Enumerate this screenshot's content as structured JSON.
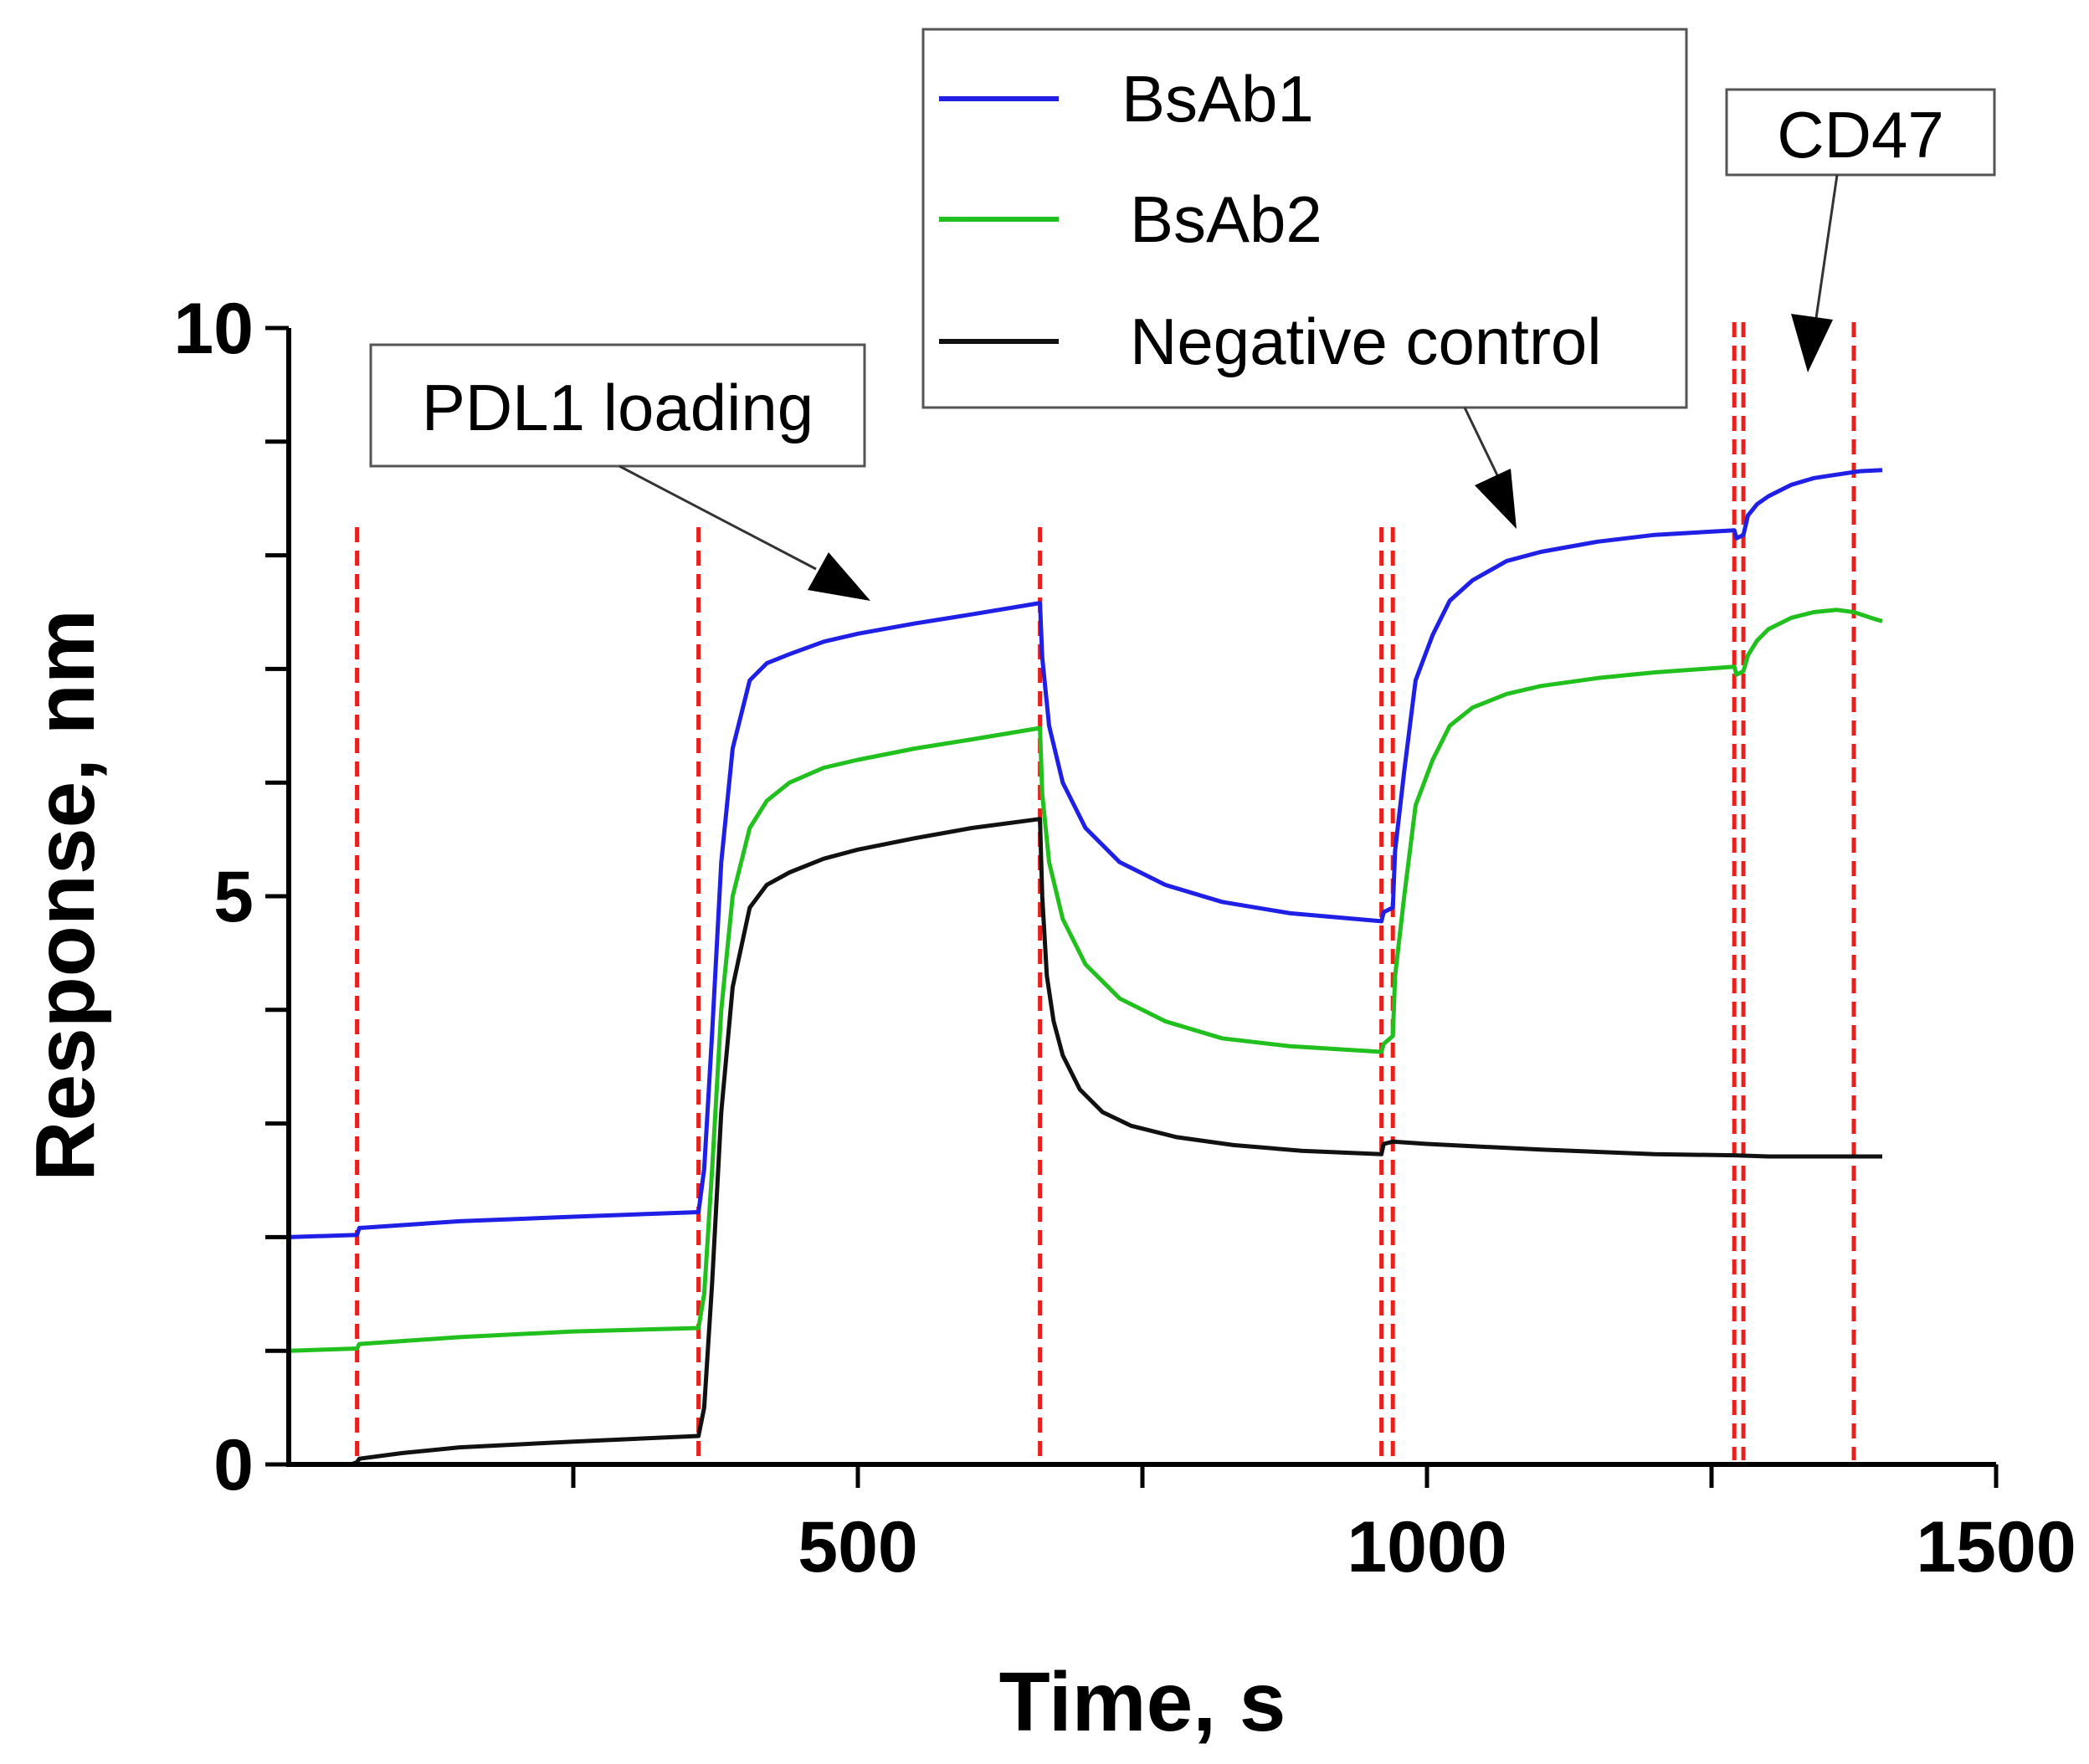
{
  "chart_data": {
    "type": "line",
    "xlabel": "Time, s",
    "ylabel": "Response, nm",
    "xlim": [
      0,
      1500
    ],
    "ylim": [
      0,
      10
    ],
    "x_ticks": [
      500,
      1000,
      1500
    ],
    "x_minor_ticks": [
      250,
      750,
      1250
    ],
    "y_ticks": [
      0,
      5,
      10
    ],
    "step_boundaries": [
      60,
      360,
      660,
      960,
      970,
      1270,
      1278,
      1375
    ],
    "series": [
      {
        "name": "BsAb1",
        "color": "#1f1fe6",
        "x": [
          0,
          60,
          62,
          150,
          250,
          360,
          365,
          372,
          380,
          390,
          405,
          420,
          440,
          470,
          500,
          550,
          600,
          660,
          662,
          668,
          680,
          700,
          730,
          770,
          820,
          880,
          960,
          962,
          970,
          972,
          980,
          990,
          1005,
          1020,
          1040,
          1070,
          1100,
          1150,
          1200,
          1270,
          1272,
          1278,
          1282,
          1290,
          1300,
          1320,
          1340,
          1360,
          1380,
          1400
        ],
        "y": [
          2.0,
          2.02,
          2.08,
          2.14,
          2.18,
          2.22,
          2.6,
          3.8,
          5.3,
          6.3,
          6.9,
          7.05,
          7.13,
          7.24,
          7.31,
          7.4,
          7.48,
          7.58,
          7.1,
          6.5,
          6.0,
          5.6,
          5.3,
          5.1,
          4.95,
          4.85,
          4.78,
          4.86,
          4.9,
          5.4,
          6.1,
          6.9,
          7.3,
          7.6,
          7.78,
          7.95,
          8.03,
          8.12,
          8.18,
          8.22,
          8.15,
          8.18,
          8.35,
          8.45,
          8.52,
          8.62,
          8.68,
          8.71,
          8.74,
          8.75
        ]
      },
      {
        "name": "BsAb2",
        "color": "#22c01e",
        "x": [
          0,
          60,
          62,
          150,
          250,
          360,
          365,
          372,
          380,
          390,
          405,
          420,
          440,
          470,
          500,
          550,
          600,
          660,
          662,
          668,
          680,
          700,
          730,
          770,
          820,
          880,
          960,
          962,
          970,
          972,
          980,
          990,
          1005,
          1020,
          1040,
          1070,
          1100,
          1150,
          1200,
          1270,
          1272,
          1278,
          1282,
          1290,
          1300,
          1320,
          1340,
          1360,
          1375,
          1390,
          1400
        ],
        "y": [
          1.0,
          1.02,
          1.06,
          1.12,
          1.17,
          1.2,
          1.5,
          2.6,
          4.0,
          5.0,
          5.6,
          5.84,
          6.0,
          6.13,
          6.2,
          6.3,
          6.38,
          6.48,
          5.9,
          5.3,
          4.8,
          4.4,
          4.1,
          3.9,
          3.75,
          3.68,
          3.63,
          3.7,
          3.77,
          4.3,
          5.0,
          5.8,
          6.2,
          6.5,
          6.66,
          6.78,
          6.85,
          6.92,
          6.97,
          7.02,
          6.95,
          6.98,
          7.12,
          7.25,
          7.35,
          7.45,
          7.5,
          7.52,
          7.5,
          7.45,
          7.42
        ]
      },
      {
        "name": "Negative control",
        "color": "#111111",
        "x": [
          0,
          55,
          60,
          62,
          100,
          150,
          250,
          360,
          365,
          372,
          380,
          390,
          405,
          420,
          440,
          470,
          500,
          550,
          600,
          660,
          662,
          666,
          672,
          680,
          695,
          715,
          740,
          780,
          830,
          890,
          960,
          962,
          970,
          1000,
          1100,
          1200,
          1270,
          1300,
          1400
        ],
        "y": [
          0,
          0.0,
          0.02,
          0.05,
          0.1,
          0.15,
          0.2,
          0.25,
          0.5,
          1.6,
          3.1,
          4.2,
          4.9,
          5.1,
          5.21,
          5.33,
          5.41,
          5.51,
          5.6,
          5.68,
          5.0,
          4.3,
          3.9,
          3.6,
          3.3,
          3.1,
          2.98,
          2.88,
          2.81,
          2.76,
          2.73,
          2.82,
          2.84,
          2.82,
          2.77,
          2.73,
          2.72,
          2.71,
          2.71
        ]
      }
    ]
  },
  "annotations": {
    "pdl1": {
      "label": "PDL1 loading"
    },
    "cd47": {
      "label": "CD47"
    }
  },
  "legend": {
    "position": "top-right"
  }
}
